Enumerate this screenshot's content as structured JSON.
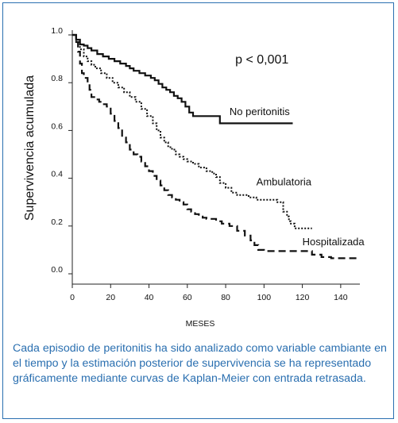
{
  "chart_data": {
    "type": "line",
    "xlabel": "MESES",
    "ylabel": "Supervivencia acumulada",
    "xlim": [
      0,
      150
    ],
    "ylim": [
      0.0,
      1.0
    ],
    "xticks": [
      "0",
      "20",
      "40",
      "60",
      "80",
      "100",
      "120",
      "140"
    ],
    "yticks": [
      "0.0",
      "0.2",
      "0.4",
      "0.6",
      "0.8",
      "1.0"
    ],
    "annotation": "p < 0,001",
    "series": [
      {
        "name": "No peritonitis",
        "style": "solid",
        "points": [
          [
            0,
            1.0
          ],
          [
            2,
            0.98
          ],
          [
            4,
            0.96
          ],
          [
            6,
            0.955
          ],
          [
            8,
            0.945
          ],
          [
            10,
            0.935
          ],
          [
            13,
            0.92
          ],
          [
            16,
            0.91
          ],
          [
            19,
            0.9
          ],
          [
            22,
            0.89
          ],
          [
            25,
            0.88
          ],
          [
            28,
            0.87
          ],
          [
            30,
            0.86
          ],
          [
            32,
            0.85
          ],
          [
            35,
            0.84
          ],
          [
            38,
            0.83
          ],
          [
            41,
            0.82
          ],
          [
            43,
            0.81
          ],
          [
            45,
            0.795
          ],
          [
            47,
            0.78
          ],
          [
            49,
            0.77
          ],
          [
            51,
            0.76
          ],
          [
            53,
            0.745
          ],
          [
            55,
            0.735
          ],
          [
            57,
            0.72
          ],
          [
            59,
            0.7
          ],
          [
            61,
            0.675
          ],
          [
            63,
            0.66
          ],
          [
            65,
            0.66
          ],
          [
            70,
            0.66
          ],
          [
            77,
            0.66
          ],
          [
            77,
            0.63
          ],
          [
            80,
            0.63
          ],
          [
            90,
            0.63
          ],
          [
            100,
            0.63
          ],
          [
            105,
            0.63
          ],
          [
            115,
            0.63
          ]
        ]
      },
      {
        "name": "Ambulatoria",
        "style": "dotted",
        "points": [
          [
            0,
            1.0
          ],
          [
            2,
            0.97
          ],
          [
            4,
            0.94
          ],
          [
            6,
            0.91
          ],
          [
            8,
            0.89
          ],
          [
            10,
            0.875
          ],
          [
            12,
            0.86
          ],
          [
            15,
            0.84
          ],
          [
            18,
            0.82
          ],
          [
            21,
            0.8
          ],
          [
            24,
            0.78
          ],
          [
            27,
            0.76
          ],
          [
            30,
            0.74
          ],
          [
            33,
            0.72
          ],
          [
            36,
            0.69
          ],
          [
            39,
            0.66
          ],
          [
            42,
            0.63
          ],
          [
            44,
            0.6
          ],
          [
            46,
            0.57
          ],
          [
            48,
            0.55
          ],
          [
            50,
            0.53
          ],
          [
            52,
            0.52
          ],
          [
            54,
            0.5
          ],
          [
            56,
            0.49
          ],
          [
            58,
            0.48
          ],
          [
            60,
            0.47
          ],
          [
            63,
            0.46
          ],
          [
            66,
            0.445
          ],
          [
            70,
            0.43
          ],
          [
            73,
            0.42
          ],
          [
            75,
            0.405
          ],
          [
            77,
            0.38
          ],
          [
            80,
            0.36
          ],
          [
            83,
            0.34
          ],
          [
            86,
            0.33
          ],
          [
            90,
            0.33
          ],
          [
            92,
            0.32
          ],
          [
            96,
            0.31
          ],
          [
            100,
            0.31
          ],
          [
            105,
            0.31
          ],
          [
            107,
            0.3
          ],
          [
            110,
            0.26
          ],
          [
            112,
            0.24
          ],
          [
            113,
            0.22
          ],
          [
            114,
            0.21
          ],
          [
            116,
            0.19
          ],
          [
            120,
            0.19
          ],
          [
            125,
            0.19
          ]
        ]
      },
      {
        "name": "Hospitalizada",
        "style": "dashed",
        "points": [
          [
            0,
            1.0
          ],
          [
            2,
            0.97
          ],
          [
            3,
            0.93
          ],
          [
            4,
            0.88
          ],
          [
            5,
            0.84
          ],
          [
            6,
            0.82
          ],
          [
            8,
            0.8
          ],
          [
            9,
            0.77
          ],
          [
            10,
            0.74
          ],
          [
            12,
            0.73
          ],
          [
            14,
            0.72
          ],
          [
            16,
            0.71
          ],
          [
            18,
            0.7
          ],
          [
            20,
            0.67
          ],
          [
            22,
            0.64
          ],
          [
            24,
            0.61
          ],
          [
            26,
            0.57
          ],
          [
            28,
            0.55
          ],
          [
            30,
            0.52
          ],
          [
            32,
            0.5
          ],
          [
            34,
            0.49
          ],
          [
            36,
            0.47
          ],
          [
            38,
            0.45
          ],
          [
            40,
            0.43
          ],
          [
            42,
            0.41
          ],
          [
            44,
            0.39
          ],
          [
            46,
            0.37
          ],
          [
            48,
            0.35
          ],
          [
            50,
            0.33
          ],
          [
            52,
            0.32
          ],
          [
            54,
            0.31
          ],
          [
            56,
            0.3
          ],
          [
            58,
            0.29
          ],
          [
            60,
            0.27
          ],
          [
            62,
            0.26
          ],
          [
            64,
            0.25
          ],
          [
            66,
            0.24
          ],
          [
            68,
            0.235
          ],
          [
            70,
            0.23
          ],
          [
            75,
            0.22
          ],
          [
            78,
            0.21
          ],
          [
            82,
            0.2
          ],
          [
            86,
            0.18
          ],
          [
            90,
            0.16
          ],
          [
            93,
            0.14
          ],
          [
            95,
            0.12
          ],
          [
            97,
            0.1
          ],
          [
            100,
            0.095
          ],
          [
            105,
            0.095
          ],
          [
            110,
            0.095
          ],
          [
            115,
            0.095
          ],
          [
            120,
            0.095
          ],
          [
            125,
            0.08
          ],
          [
            130,
            0.07
          ],
          [
            135,
            0.065
          ],
          [
            140,
            0.065
          ],
          [
            145,
            0.065
          ],
          [
            150,
            0.065
          ]
        ]
      }
    ]
  },
  "caption": "Cada episodio de peritonitis ha sido analizado como variable cambiante en el tiempo y la estimación posterior de supervivencia se ha representado gráficamente mediante curvas de Kaplan-Meier con entrada retrasada."
}
